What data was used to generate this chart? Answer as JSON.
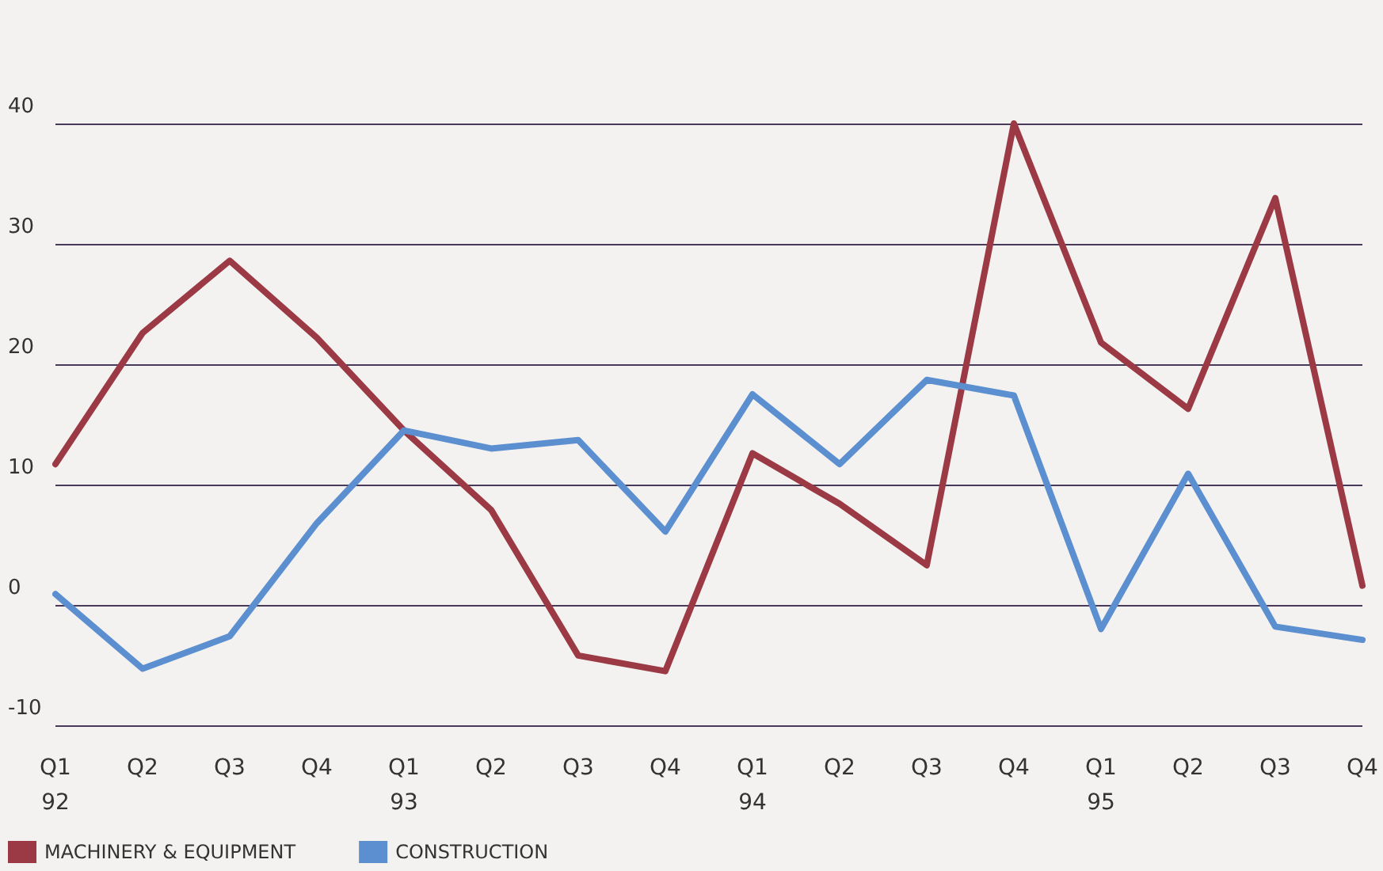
{
  "chart_data": {
    "type": "line",
    "categories": [
      "Q1\n92",
      "Q2",
      "Q3",
      "Q4",
      "Q1\n93",
      "Q2",
      "Q3",
      "Q4",
      "Q1\n94",
      "Q2",
      "Q3",
      "Q4",
      "Q1\n95",
      "Q2",
      "Q3",
      "Q4"
    ],
    "series": [
      {
        "name": "MACHINERY & EQUIPMENT",
        "color": "#9b3a44",
        "values": [
          11.7,
          22.6,
          28.6,
          22.2,
          14.5,
          7.9,
          -4.2,
          -5.5,
          12.6,
          8.4,
          3.3,
          40,
          21.8,
          16.3,
          33.8,
          1.6
        ]
      },
      {
        "name": "CONSTRUCTION",
        "color": "#5b8fd0",
        "values": [
          0.9,
          -5.3,
          -2.6,
          6.8,
          14.5,
          13,
          13.7,
          6.1,
          17.5,
          11.7,
          18.7,
          17.4,
          -2,
          10.9,
          -1.8,
          -2.9
        ]
      }
    ],
    "ylim": [
      -10,
      40
    ],
    "yticks": [
      -10,
      0,
      10,
      20,
      30,
      40
    ],
    "grid": "y",
    "legend": "bottom left",
    "marker": "none",
    "line_style": "solid"
  }
}
